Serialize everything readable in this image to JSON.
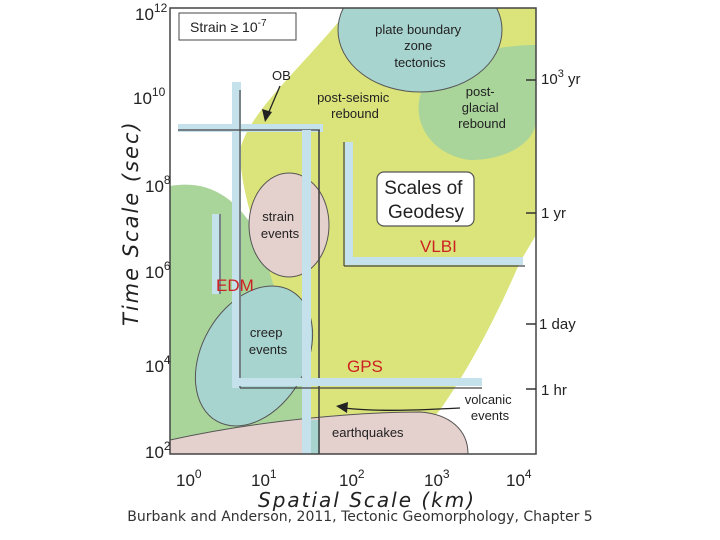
{
  "strain_label": "Strain ≥",
  "strain_value": "10",
  "strain_exp": "-7",
  "y_axis": {
    "title": "Time Scale (sec)",
    "ticks": [
      {
        "base": "10",
        "exp": "12"
      },
      {
        "base": "10",
        "exp": "10"
      },
      {
        "base": "10",
        "exp": "8"
      },
      {
        "base": "10",
        "exp": "6"
      },
      {
        "base": "10",
        "exp": "4"
      },
      {
        "base": "10",
        "exp": "2"
      }
    ]
  },
  "x_axis": {
    "title": "Spatial Scale (km)",
    "ticks": [
      {
        "base": "10",
        "exp": "0"
      },
      {
        "base": "10",
        "exp": "1"
      },
      {
        "base": "10",
        "exp": "2"
      },
      {
        "base": "10",
        "exp": "3"
      },
      {
        "base": "10",
        "exp": "4"
      }
    ]
  },
  "right_ticks": {
    "t1000yr_base": "10",
    "t1000yr_exp": "3",
    "t1000yr_unit": " yr",
    "t1yr": "1 yr",
    "t1day": "1 day",
    "t1hr": "1 hr"
  },
  "regions": {
    "plate_boundary": [
      "plate boundary",
      "zone",
      "tectonics"
    ],
    "post_seismic": [
      "post-seismic",
      "rebound"
    ],
    "post_glacial": [
      "post-",
      "glacial",
      "rebound"
    ],
    "strain_events": [
      "strain",
      "events"
    ],
    "creep_events": [
      "creep",
      "events"
    ],
    "earthquakes": "earthquakes",
    "volcanic": [
      "volcanic",
      "events"
    ]
  },
  "techniques": {
    "ob": "OB",
    "vlbi": "VLBI",
    "edm": "EDM",
    "gps": "GPS"
  },
  "title_box": [
    "Scales of",
    "Geodesy"
  ],
  "citation": "Burbank and Anderson, 2011, Tectonic Geomorphology, Chapter 5",
  "colors": {
    "yellow_green": "#dbe47a",
    "green": "#a9d49a",
    "teal": "#a8d4d0",
    "pink": "#e4d0cc",
    "technique_red": "#cc2222",
    "hatch_blue": "#c5e2ec"
  }
}
